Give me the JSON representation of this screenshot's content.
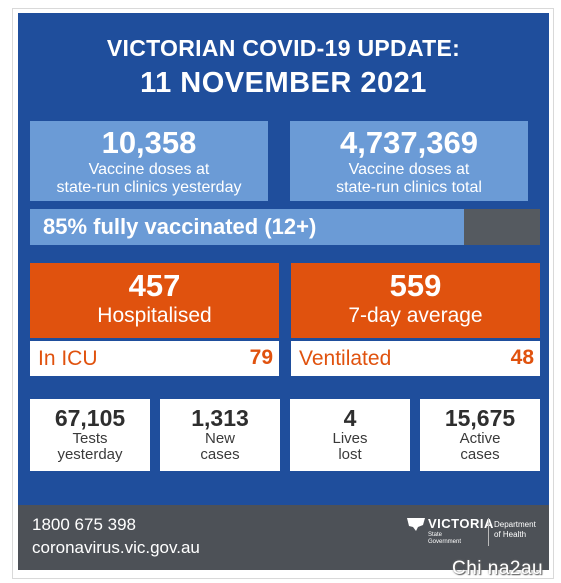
{
  "header": {
    "line1": "VICTORIAN COVID-19 UPDATE:",
    "line2": "11 NOVEMBER 2021"
  },
  "vaccine": {
    "left": {
      "value": "10,358",
      "line1": "Vaccine doses at",
      "line2": "state-run clinics yesterday"
    },
    "right": {
      "value": "4,737,369",
      "line1": "Vaccine doses at",
      "line2": "state-run clinics total"
    }
  },
  "progress": {
    "label": "85% fully vaccinated (12+)",
    "percent": 85,
    "fill_color": "#6b9bd6",
    "track_color": "#555a60"
  },
  "hospital": {
    "left": {
      "value": "457",
      "label": "Hospitalised"
    },
    "right": {
      "value": "559",
      "label": "7-day average"
    }
  },
  "details": {
    "left": {
      "label": "In ICU",
      "value": "79"
    },
    "right": {
      "label": "Ventilated",
      "value": "48"
    }
  },
  "stats": [
    {
      "value": "67,105",
      "line1": "Tests",
      "line2": "yesterday"
    },
    {
      "value": "1,313",
      "line1": "New",
      "line2": "cases"
    },
    {
      "value": "4",
      "line1": "Lives",
      "line2": "lost"
    },
    {
      "value": "15,675",
      "line1": "Active",
      "line2": "cases"
    }
  ],
  "footer": {
    "phone": "1800 675 398",
    "website": "coronavirus.vic.gov.au",
    "logo_victoria": "VICTORIA",
    "logo_state": "State",
    "logo_government": "Government",
    "logo_dept1": "Department",
    "logo_dept2": "of Health"
  },
  "watermark": "Chi na2au",
  "colors": {
    "panel_blue": "#1f4e9c",
    "light_blue": "#6b9bd6",
    "orange": "#e0520e",
    "footer_grey": "#4d5157"
  },
  "icons": [
    "victoria-map-icon"
  ]
}
